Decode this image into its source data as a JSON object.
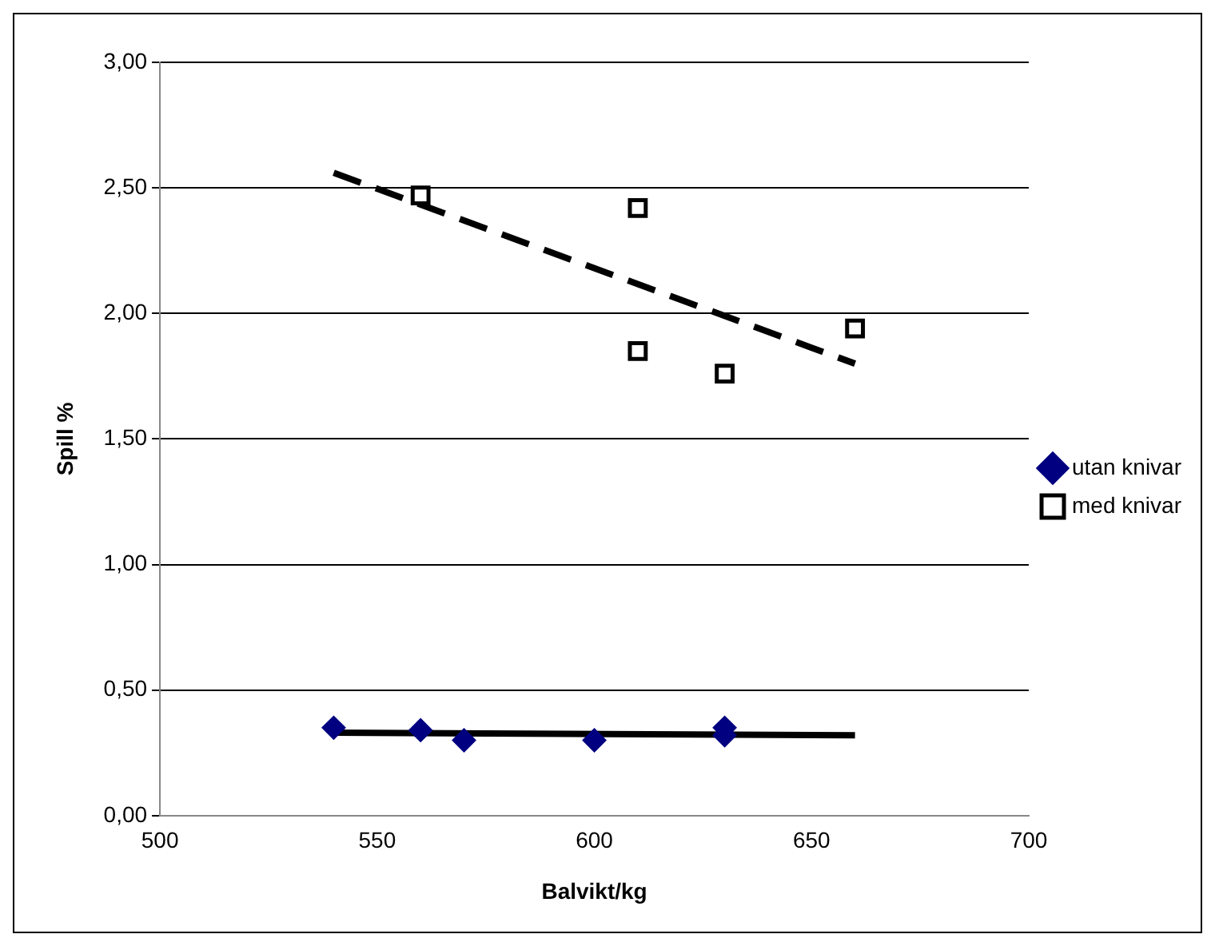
{
  "chart_data": {
    "type": "scatter",
    "xlabel": "Balvikt/kg",
    "ylabel": "Spill %",
    "xlim": [
      500,
      700
    ],
    "xticks": [
      500,
      550,
      600,
      650,
      700
    ],
    "ylim": [
      0,
      3
    ],
    "yticks": [
      {
        "value": 0,
        "label": "0,00"
      },
      {
        "value": 0.5,
        "label": "0,50"
      },
      {
        "value": 1,
        "label": "1,00"
      },
      {
        "value": 1.5,
        "label": "1,50"
      },
      {
        "value": 2,
        "label": "2,00"
      },
      {
        "value": 2.5,
        "label": "2,50"
      },
      {
        "value": 3,
        "label": "3,00"
      }
    ],
    "grid": "y",
    "legend": "right",
    "series": [
      {
        "name": "utan knivar",
        "color": "#000080",
        "marker": "diamond",
        "x": [
          540,
          560,
          570,
          600,
          630,
          630
        ],
        "values": [
          0.35,
          0.34,
          0.3,
          0.3,
          0.35,
          0.32
        ]
      },
      {
        "name": "med knivar",
        "color": "#000000",
        "marker": "square",
        "x": [
          560,
          610,
          610,
          630,
          660
        ],
        "values": [
          2.47,
          2.42,
          1.85,
          1.76,
          1.94
        ]
      },
      {
        "type": "line",
        "color": "#000000",
        "line_style": "solid",
        "marker": "none",
        "x": [
          540,
          660
        ],
        "values": [
          0.33,
          0.32
        ]
      },
      {
        "type": "line",
        "color": "#000000",
        "line_style": "dashed",
        "marker": "none",
        "x": [
          540,
          660
        ],
        "values": [
          2.56,
          1.8
        ]
      }
    ]
  }
}
